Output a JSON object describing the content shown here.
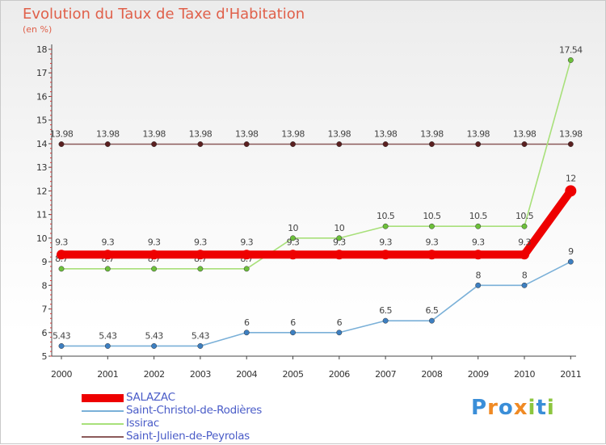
{
  "header": {
    "title": "Evolution du Taux de Taxe d'Habitation",
    "subtitle": "(en %)"
  },
  "logo": {
    "letters": [
      {
        "ch": "P",
        "color": "#3a8ed8"
      },
      {
        "ch": "r",
        "color": "#f08a24"
      },
      {
        "ch": "o",
        "color": "#3a8ed8"
      },
      {
        "ch": "x",
        "color": "#f08a24"
      },
      {
        "ch": "i",
        "color": "#8cc63f"
      },
      {
        "ch": "t",
        "color": "#3a8ed8"
      },
      {
        "ch": "i",
        "color": "#8cc63f"
      }
    ]
  },
  "chart_data": {
    "type": "line",
    "title": "Evolution du Taux de Taxe d'Habitation",
    "ylabel": "(en %)",
    "xlabel": "",
    "ylim": [
      5,
      18
    ],
    "yticks": [
      5,
      6,
      7,
      8,
      9,
      10,
      11,
      12,
      13,
      14,
      15,
      16,
      17,
      18
    ],
    "categories": [
      "2000",
      "2001",
      "2002",
      "2003",
      "2004",
      "2005",
      "2006",
      "2007",
      "2008",
      "2009",
      "2010",
      "2011"
    ],
    "series": [
      {
        "name": "Saint-Julien-de-Peyrolas",
        "color": "#8b5a5a",
        "marker_color": "#5a1f1f",
        "values": [
          13.98,
          13.98,
          13.98,
          13.98,
          13.98,
          13.98,
          13.98,
          13.98,
          13.98,
          13.98,
          13.98,
          13.98
        ],
        "labels": [
          "13.98",
          "13.98",
          "13.98",
          "13.98",
          "13.98",
          "13.98",
          "13.98",
          "13.98",
          "13.98",
          "13.98",
          "13.98",
          "13.98"
        ]
      },
      {
        "name": "Saint-Christol-de-Rodières",
        "color": "#7ab0d8",
        "marker_color": "#3d7fc1",
        "values": [
          5.43,
          5.43,
          5.43,
          5.43,
          6,
          6,
          6,
          6.5,
          6.5,
          8,
          8,
          9
        ],
        "labels": [
          "5.43",
          "5.43",
          "5.43",
          "5.43",
          "6",
          "6",
          "6",
          "6.5",
          "6.5",
          "8",
          "8",
          "9"
        ]
      },
      {
        "name": "Issirac",
        "color": "#a8e07a",
        "marker_color": "#6cc03a",
        "values": [
          8.7,
          8.7,
          8.7,
          8.7,
          8.7,
          10,
          10,
          10.5,
          10.5,
          10.5,
          10.5,
          17.54
        ],
        "labels": [
          "8.7",
          "8.7",
          "8.7",
          "8.7",
          "8.7",
          "10",
          "10",
          "10.5",
          "10.5",
          "10.5",
          "10.5",
          "17.54"
        ]
      },
      {
        "name": "SALAZAC",
        "color": "#ee0000",
        "marker_color": "#ee0000",
        "values": [
          9.3,
          9.3,
          9.3,
          9.3,
          9.3,
          9.3,
          9.3,
          9.3,
          9.3,
          9.3,
          9.3,
          12
        ],
        "labels": [
          "9.3",
          "9.3",
          "9.3",
          "9.3",
          "9.3",
          "9.3",
          "9.3",
          "9.3",
          "9.3",
          "9.3",
          "9.3",
          "12"
        ]
      }
    ],
    "legend": [
      "SALAZAC",
      "Saint-Christol-de-Rodières",
      "Issirac",
      "Saint-Julien-de-Peyrolas"
    ]
  }
}
